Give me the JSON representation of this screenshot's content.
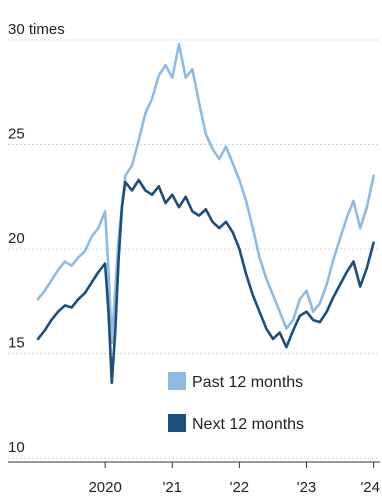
{
  "chart_data": {
    "type": "line",
    "y_unit_label": "30 times",
    "ylim": [
      10,
      30
    ],
    "y_ticks": [
      30,
      25,
      20,
      15,
      10
    ],
    "y_tick_labels": [
      "30 times",
      "25",
      "20",
      "15",
      "10"
    ],
    "x_ticks": [
      {
        "label": "2020",
        "value": 2020.0
      },
      {
        "label": "'21",
        "value": 2021.0
      },
      {
        "label": "'22",
        "value": 2022.0
      },
      {
        "label": "'23",
        "value": 2023.0
      },
      {
        "label": "'24",
        "value": 2024.0
      }
    ],
    "xlim": [
      2019.0,
      2024.05
    ],
    "grid": true,
    "legend_position": "bottom-right",
    "series": [
      {
        "name": "Past 12 months",
        "color": "#8fbbe0",
        "x": [
          2019.0,
          2019.1,
          2019.2,
          2019.3,
          2019.4,
          2019.5,
          2019.6,
          2019.7,
          2019.8,
          2019.9,
          2020.0,
          2020.05,
          2020.1,
          2020.15,
          2020.2,
          2020.25,
          2020.3,
          2020.4,
          2020.5,
          2020.6,
          2020.7,
          2020.8,
          2020.9,
          2021.0,
          2021.1,
          2021.2,
          2021.3,
          2021.4,
          2021.5,
          2021.6,
          2021.7,
          2021.8,
          2021.9,
          2022.0,
          2022.1,
          2022.2,
          2022.3,
          2022.4,
          2022.5,
          2022.6,
          2022.7,
          2022.8,
          2022.9,
          2023.0,
          2023.1,
          2023.2,
          2023.3,
          2023.4,
          2023.5,
          2023.6,
          2023.7,
          2023.8,
          2023.9,
          2024.0
        ],
        "values": [
          17.6,
          18.0,
          18.5,
          19.0,
          19.4,
          19.2,
          19.6,
          19.9,
          20.6,
          21.0,
          21.8,
          19.0,
          15.5,
          18.0,
          20.5,
          22.0,
          23.5,
          24.0,
          25.2,
          26.5,
          27.2,
          28.3,
          28.8,
          28.2,
          29.8,
          28.2,
          28.6,
          27.0,
          25.5,
          24.8,
          24.3,
          24.9,
          24.1,
          23.3,
          22.3,
          21.0,
          19.6,
          18.6,
          17.8,
          17.0,
          16.2,
          16.6,
          17.6,
          18.0,
          17.0,
          17.4,
          18.3,
          19.5,
          20.5,
          21.5,
          22.3,
          21.0,
          22.0,
          23.5
        ]
      },
      {
        "name": "Next 12 months",
        "color": "#1e4e7a",
        "x": [
          2019.0,
          2019.1,
          2019.2,
          2019.3,
          2019.4,
          2019.5,
          2019.6,
          2019.7,
          2019.8,
          2019.9,
          2020.0,
          2020.05,
          2020.1,
          2020.15,
          2020.2,
          2020.25,
          2020.3,
          2020.4,
          2020.5,
          2020.6,
          2020.7,
          2020.8,
          2020.9,
          2021.0,
          2021.1,
          2021.2,
          2021.3,
          2021.4,
          2021.5,
          2021.6,
          2021.7,
          2021.8,
          2021.9,
          2022.0,
          2022.1,
          2022.2,
          2022.3,
          2022.4,
          2022.5,
          2022.6,
          2022.7,
          2022.8,
          2022.9,
          2023.0,
          2023.1,
          2023.2,
          2023.3,
          2023.4,
          2023.5,
          2023.6,
          2023.7,
          2023.8,
          2023.9,
          2024.0
        ],
        "values": [
          15.7,
          16.1,
          16.6,
          17.0,
          17.3,
          17.2,
          17.6,
          17.9,
          18.4,
          18.9,
          19.3,
          17.0,
          13.6,
          16.0,
          19.5,
          22.0,
          23.2,
          22.8,
          23.3,
          22.8,
          22.6,
          23.0,
          22.2,
          22.6,
          22.0,
          22.5,
          21.8,
          21.6,
          21.9,
          21.3,
          21.0,
          21.3,
          20.8,
          20.0,
          18.8,
          17.8,
          17.0,
          16.2,
          15.7,
          16.0,
          15.3,
          16.1,
          16.8,
          17.0,
          16.6,
          16.5,
          17.0,
          17.7,
          18.3,
          18.9,
          19.4,
          18.2,
          19.1,
          20.3
        ]
      }
    ]
  }
}
